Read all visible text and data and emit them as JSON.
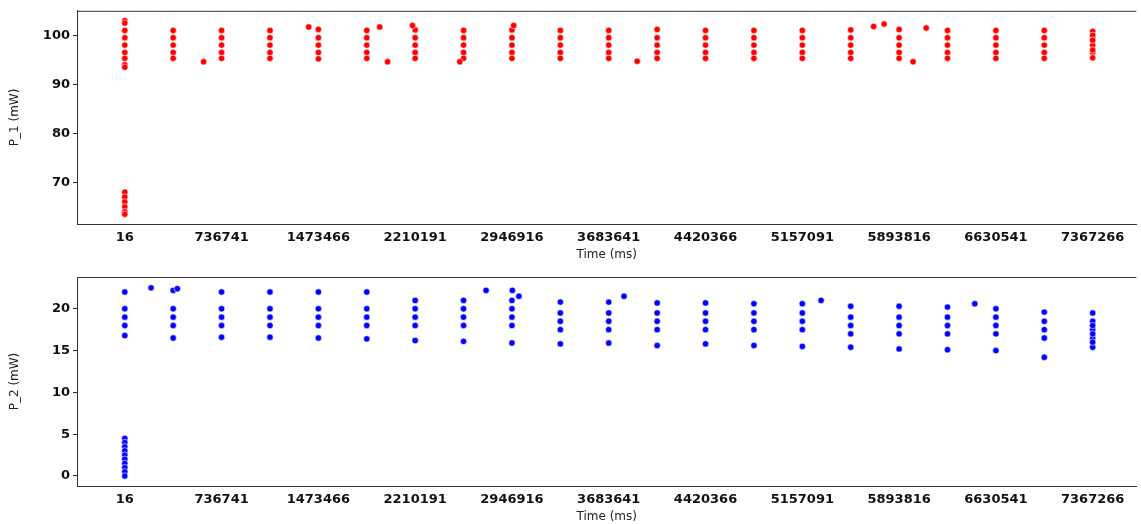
{
  "chart_data": [
    {
      "type": "scatter",
      "xlabel": "Time (ms)",
      "ylabel": "P_1 (mW)",
      "color": "#ff0000",
      "marker": "circle",
      "xlim": [
        -363800,
        7700000
      ],
      "xticks": [
        16,
        736741,
        1473466,
        2210191,
        2946916,
        3683641,
        4420366,
        5157091,
        5893816,
        6630541,
        7367266
      ],
      "ylim": [
        61.5,
        105
      ],
      "yticks": [
        70,
        80,
        90,
        100
      ],
      "x": [
        16,
        16,
        16,
        16,
        16,
        368379,
        368379,
        368379,
        368379,
        368379,
        736741,
        736741,
        736741,
        736741,
        736741,
        1105104,
        1105104,
        1105104,
        1105104,
        1105104,
        1473466,
        1473466,
        1473466,
        1473466,
        1473466,
        1841829,
        1841829,
        1841829,
        1841829,
        1841829,
        2210191,
        2210191,
        2210191,
        2210191,
        2210191,
        2578554,
        2578554,
        2578554,
        2578554,
        2578554,
        2946916,
        2946916,
        2946916,
        2946916,
        2946916,
        3315279,
        3315279,
        3315279,
        3315279,
        3315279,
        3683641,
        3683641,
        3683641,
        3683641,
        3683641,
        4052004,
        4052004,
        4052004,
        4052004,
        4052004,
        4420366,
        4420366,
        4420366,
        4420366,
        4420366,
        4788729,
        4788729,
        4788729,
        4788729,
        4788729,
        5157091,
        5157091,
        5157091,
        5157091,
        5157091,
        5525454,
        5525454,
        5525454,
        5525454,
        5525454,
        5893816,
        5893816,
        5893816,
        5893816,
        5893816,
        6262179,
        6262179,
        6262179,
        6262179,
        6262179,
        6630541,
        6630541,
        6630541,
        6630541,
        6630541,
        6998904,
        6998904,
        6998904,
        6998904,
        6998904,
        7367266,
        7367266,
        7367266,
        7367266,
        7367266,
        16,
        16,
        16,
        16,
        16,
        16,
        16,
        16,
        16,
        16,
        1400000,
        1940000,
        2190000,
        2960000,
        5780000,
        5700000,
        6100000,
        600000,
        2000000,
        2550000,
        3900000,
        6000000,
        7367266,
        7367266,
        7367266
      ],
      "values": [
        101,
        99.5,
        98,
        96.5,
        95.3,
        101,
        99.5,
        98,
        96.5,
        95.3,
        101,
        99.5,
        98,
        96.5,
        95.3,
        101,
        99.5,
        98,
        96.5,
        95.3,
        101.2,
        99.5,
        98,
        96.5,
        95.2,
        101,
        99.5,
        98,
        96.5,
        95.3,
        101.1,
        99.5,
        98,
        96.5,
        95.3,
        101,
        99.5,
        98,
        96.5,
        95.3,
        101.1,
        99.5,
        98,
        96.5,
        95.3,
        101,
        99.5,
        98,
        96.5,
        95.3,
        101,
        99.5,
        98,
        96.5,
        95.3,
        101.2,
        99.5,
        98,
        96.5,
        95.3,
        101,
        99.5,
        98,
        96.5,
        95.3,
        101,
        99.5,
        98,
        96.5,
        95.3,
        101,
        99.5,
        98,
        96.5,
        95.3,
        101.1,
        99.5,
        98,
        96.5,
        95.3,
        101.2,
        99.5,
        98,
        96.5,
        95.3,
        101,
        99.5,
        98,
        96.5,
        95.3,
        101,
        99.5,
        98,
        96.5,
        95.3,
        101,
        99.5,
        98,
        96.5,
        95.3,
        100.8,
        99.5,
        98,
        96.5,
        95.4,
        103,
        102.5,
        94,
        93.5,
        68,
        67,
        66,
        65,
        64,
        63.5,
        101.7,
        101.7,
        102,
        102,
        102.3,
        101.8,
        101.5,
        94.6,
        94.6,
        94.6,
        94.7,
        94.6,
        100,
        99,
        97
      ]
    },
    {
      "type": "scatter",
      "xlabel": "Time (ms)",
      "ylabel": "P_2 (mW)",
      "color": "#0000ff",
      "marker": "circle",
      "xlim": [
        -363800,
        7700000
      ],
      "xticks": [
        16,
        736741,
        1473466,
        2210191,
        2946916,
        3683641,
        4420366,
        5157091,
        5893816,
        6630541,
        7367266
      ],
      "ylim": [
        -1.2,
        23.8
      ],
      "yticks": [
        0,
        5,
        10,
        15,
        20
      ],
      "x": [
        16,
        16,
        16,
        16,
        16,
        368379,
        368379,
        368379,
        368379,
        368379,
        736741,
        736741,
        736741,
        736741,
        736741,
        1105104,
        1105104,
        1105104,
        1105104,
        1105104,
        1473466,
        1473466,
        1473466,
        1473466,
        1473466,
        1841829,
        1841829,
        1841829,
        1841829,
        1841829,
        2210191,
        2210191,
        2210191,
        2210191,
        2210191,
        2578554,
        2578554,
        2578554,
        2578554,
        2578554,
        2946916,
        2946916,
        2946916,
        2946916,
        2946916,
        3315279,
        3315279,
        3315279,
        3315279,
        3315279,
        3683641,
        3683641,
        3683641,
        3683641,
        3683641,
        4052004,
        4052004,
        4052004,
        4052004,
        4052004,
        4420366,
        4420366,
        4420366,
        4420366,
        4420366,
        4788729,
        4788729,
        4788729,
        4788729,
        4788729,
        5157091,
        5157091,
        5157091,
        5157091,
        5157091,
        5525454,
        5525454,
        5525454,
        5525454,
        5525454,
        5893816,
        5893816,
        5893816,
        5893816,
        5893816,
        6262179,
        6262179,
        6262179,
        6262179,
        6262179,
        6630541,
        6630541,
        6630541,
        6630541,
        6630541,
        6998904,
        6998904,
        6998904,
        6998904,
        6998904,
        7367266,
        7367266,
        7367266,
        7367266,
        7367266,
        16,
        16,
        16,
        16,
        16,
        16,
        16,
        16,
        16,
        16,
        200000,
        400000,
        2750000,
        2950000,
        3000000,
        3800000,
        5300000,
        6470000,
        7367266,
        7367266,
        7367266
      ],
      "values": [
        22,
        20,
        19,
        18,
        16.8,
        22.2,
        20,
        19,
        18,
        16.5,
        22,
        20,
        19,
        18,
        16.6,
        22,
        20,
        19,
        18,
        16.6,
        22,
        20,
        19,
        18,
        16.5,
        22,
        20,
        19,
        18,
        16.4,
        21,
        20,
        19,
        18,
        16.2,
        21,
        20,
        19,
        18,
        16.1,
        21,
        20,
        19,
        18,
        15.9,
        20.8,
        19.5,
        18.5,
        17.5,
        15.8,
        20.8,
        19.5,
        18.5,
        17.5,
        15.9,
        20.7,
        19.5,
        18.5,
        17.5,
        15.6,
        20.7,
        19.5,
        18.5,
        17.5,
        15.8,
        20.6,
        19.5,
        18.5,
        17.5,
        15.6,
        20.6,
        19.5,
        18.5,
        17.5,
        15.5,
        20.3,
        19,
        18,
        17,
        15.4,
        20.3,
        19,
        18,
        17,
        15.2,
        20.2,
        19,
        18,
        17,
        15.1,
        20,
        19,
        18,
        17,
        15,
        19.6,
        18.5,
        17.5,
        16.5,
        14.2,
        19.5,
        18.5,
        17.5,
        16.5,
        15.4,
        4.5,
        4,
        3.5,
        3,
        2.5,
        2,
        1.5,
        1,
        0.5,
        0,
        22.5,
        22.4,
        22.2,
        22.2,
        21.5,
        21.5,
        21,
        20.6,
        18,
        17,
        16
      ]
    }
  ]
}
